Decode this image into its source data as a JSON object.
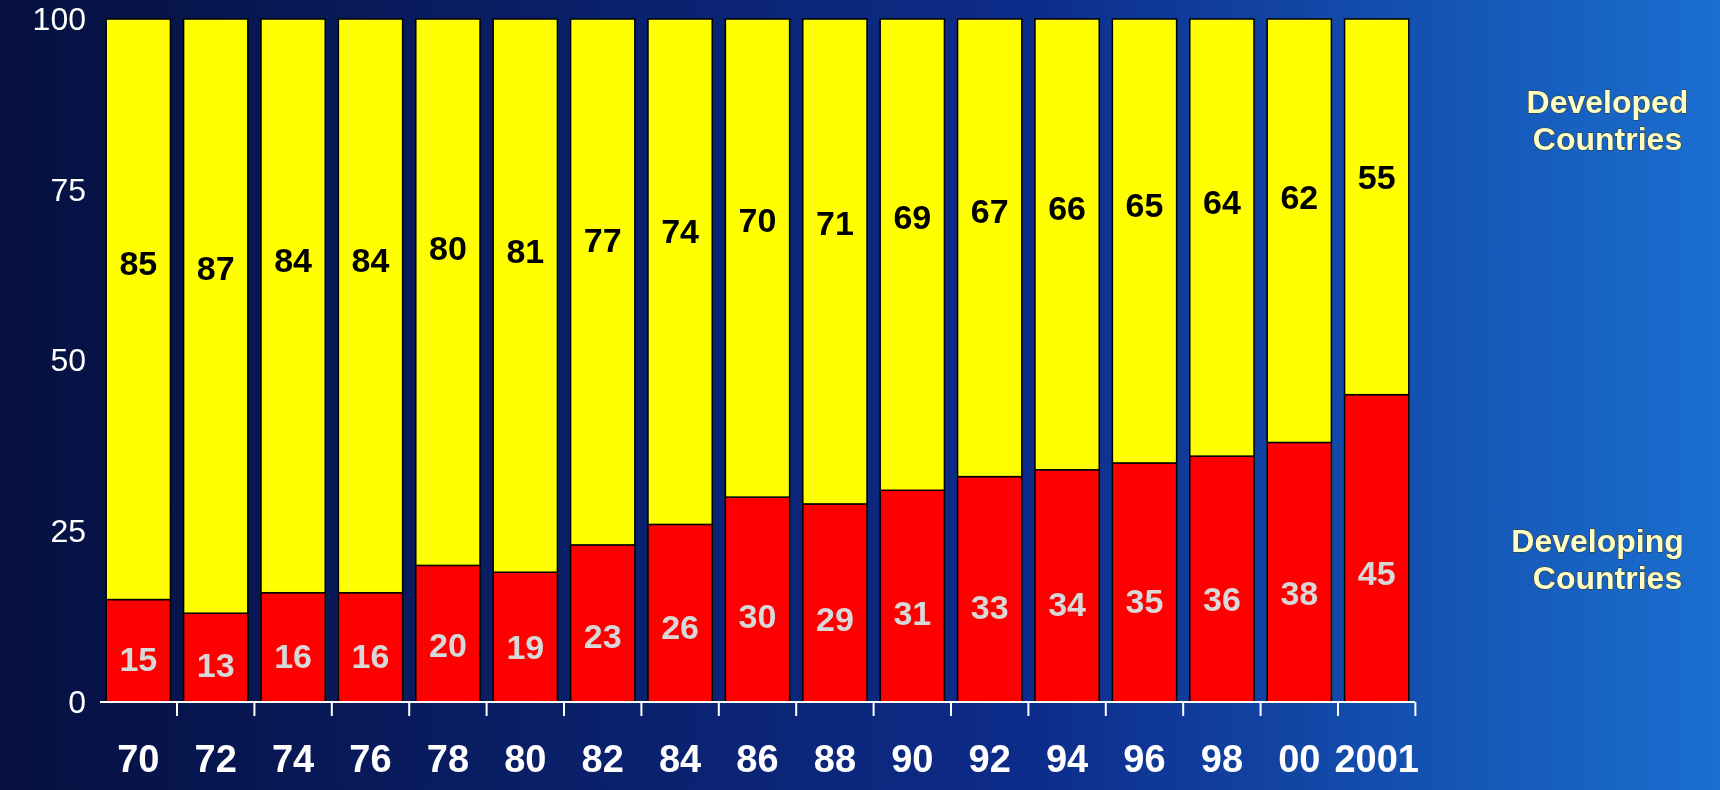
{
  "chart_data": {
    "type": "bar",
    "stacked": true,
    "categories": [
      "70",
      "72",
      "74",
      "76",
      "78",
      "80",
      "82",
      "84",
      "86",
      "88",
      "90",
      "92",
      "94",
      "96",
      "98",
      "00",
      "2001"
    ],
    "series": [
      {
        "name": "Developing Countries",
        "color": "#ff0000",
        "values": [
          15,
          13,
          16,
          16,
          20,
          19,
          23,
          26,
          30,
          29,
          31,
          33,
          34,
          35,
          36,
          38,
          45
        ]
      },
      {
        "name": "Developed Countries",
        "color": "#ffff00",
        "values": [
          85,
          87,
          84,
          84,
          80,
          81,
          77,
          74,
          70,
          71,
          69,
          67,
          66,
          65,
          64,
          62,
          55
        ]
      }
    ],
    "ylim": [
      0,
      100
    ],
    "yticks": [
      0,
      25,
      50,
      75,
      100
    ],
    "data_labels": true,
    "legend": "right",
    "grid": false
  }
}
